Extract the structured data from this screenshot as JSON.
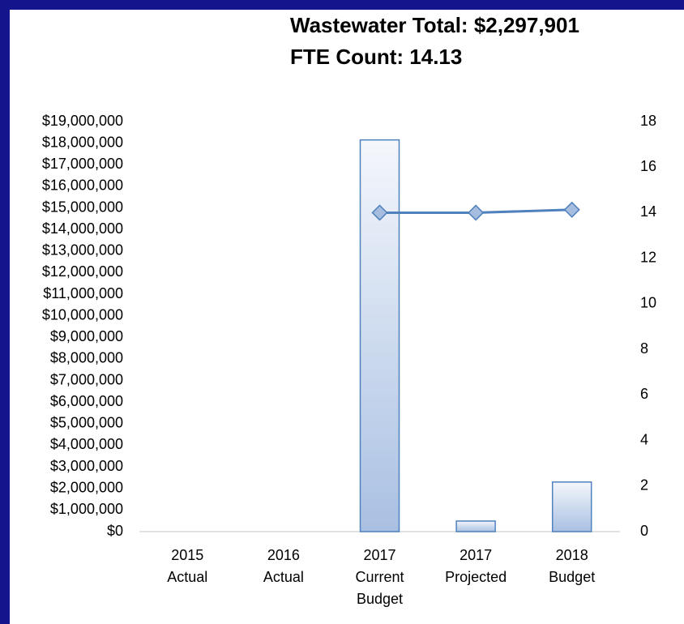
{
  "chart_data": {
    "type": "bar",
    "title": "Wastewater Total: $2,297,901",
    "subtitle": "FTE Count: 14.13",
    "categories": [
      [
        "2015",
        "Actual"
      ],
      [
        "2016",
        "Actual"
      ],
      [
        "2017",
        "Current",
        "Budget"
      ],
      [
        "2017",
        "Projected"
      ],
      [
        "2018",
        "Budget"
      ]
    ],
    "series": [
      {
        "type": "bar",
        "color": "#4f81bd",
        "values": [
          null,
          null,
          18150000,
          490000,
          2297901
        ]
      },
      {
        "type": "line",
        "axis": "y2",
        "color": "#4f81bd",
        "marker_color": "#a6bde0",
        "values": [
          null,
          null,
          14.0,
          14.0,
          14.13
        ]
      }
    ],
    "ylim": [
      0,
      19000000
    ],
    "yticks": [
      {
        "value": 0,
        "label": "$0"
      },
      {
        "value": 1000000,
        "label": "$1,000,000"
      },
      {
        "value": 2000000,
        "label": "$2,000,000"
      },
      {
        "value": 3000000,
        "label": "$3,000,000"
      },
      {
        "value": 4000000,
        "label": "$4,000,000"
      },
      {
        "value": 5000000,
        "label": "$5,000,000"
      },
      {
        "value": 6000000,
        "label": "$6,000,000"
      },
      {
        "value": 7000000,
        "label": "$7,000,000"
      },
      {
        "value": 8000000,
        "label": "$8,000,000"
      },
      {
        "value": 9000000,
        "label": "$9,000,000"
      },
      {
        "value": 10000000,
        "label": "$10,000,000"
      },
      {
        "value": 11000000,
        "label": "$11,000,000"
      },
      {
        "value": 12000000,
        "label": "$12,000,000"
      },
      {
        "value": 13000000,
        "label": "$13,000,000"
      },
      {
        "value": 14000000,
        "label": "$14,000,000"
      },
      {
        "value": 15000000,
        "label": "$15,000,000"
      },
      {
        "value": 16000000,
        "label": "$16,000,000"
      },
      {
        "value": 17000000,
        "label": "$17,000,000"
      },
      {
        "value": 18000000,
        "label": "$18,000,000"
      },
      {
        "value": 19000000,
        "label": "$19,000,000"
      }
    ],
    "y2lim": [
      0,
      18
    ],
    "y2ticks": [
      0,
      2,
      4,
      6,
      8,
      10,
      12,
      14,
      16,
      18
    ]
  }
}
